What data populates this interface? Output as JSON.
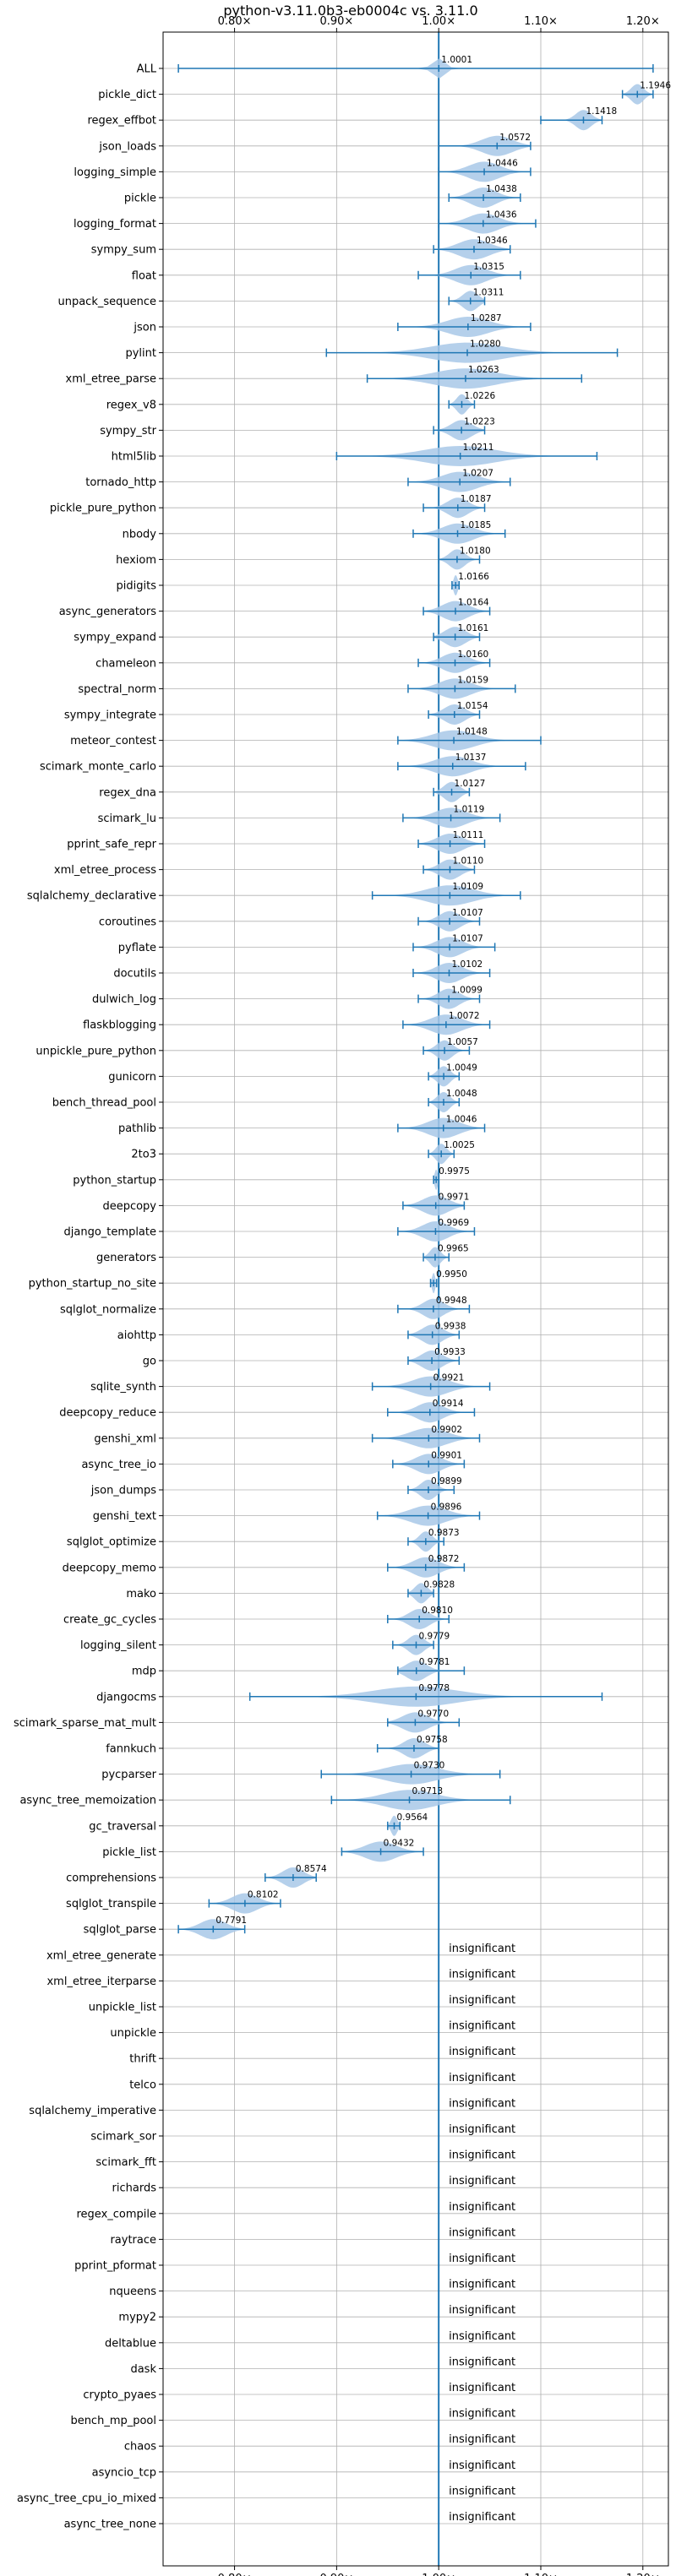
{
  "chart_data": {
    "type": "violin",
    "title": "python-v3.11.0b3-eb0004c vs. 3.11.0",
    "xlim": [
      0.73,
      1.225
    ],
    "x_ticks": [
      {
        "value": 0.8,
        "label": "0.80×"
      },
      {
        "value": 0.9,
        "label": "0.90×"
      },
      {
        "value": 1.0,
        "label": "1.00×"
      },
      {
        "value": 1.1,
        "label": "1.10×"
      },
      {
        "value": 1.2,
        "label": "1.20×"
      }
    ],
    "reference_x": 1.0,
    "grid": true,
    "colors": {
      "fill": "#a8c8e8",
      "line": "#1f77b4",
      "grid": "#b0b0b0"
    },
    "insignificant_label": "insignificant",
    "benchmarks": [
      {
        "name": "ALL",
        "value": 1.0001,
        "label": "1.0001",
        "lo": 0.745,
        "hi": 1.21,
        "spread": 0.012
      },
      {
        "name": "pickle_dict",
        "value": 1.1946,
        "label": "1.1946",
        "lo": 1.18,
        "hi": 1.21,
        "spread": 0.012
      },
      {
        "name": "regex_effbot",
        "value": 1.1418,
        "label": "1.1418",
        "lo": 1.1,
        "hi": 1.16,
        "spread": 0.015
      },
      {
        "name": "json_loads",
        "value": 1.0572,
        "label": "1.0572",
        "lo": 1.0,
        "hi": 1.09,
        "spread": 0.03
      },
      {
        "name": "logging_simple",
        "value": 1.0446,
        "label": "1.0446",
        "lo": 1.0,
        "hi": 1.09,
        "spread": 0.03
      },
      {
        "name": "pickle",
        "value": 1.0438,
        "label": "1.0438",
        "lo": 1.01,
        "hi": 1.08,
        "spread": 0.025
      },
      {
        "name": "logging_format",
        "value": 1.0436,
        "label": "1.0436",
        "lo": 1.0,
        "hi": 1.095,
        "spread": 0.03
      },
      {
        "name": "sympy_sum",
        "value": 1.0346,
        "label": "1.0346",
        "lo": 0.995,
        "hi": 1.07,
        "spread": 0.03
      },
      {
        "name": "float",
        "value": 1.0315,
        "label": "1.0315",
        "lo": 0.98,
        "hi": 1.08,
        "spread": 0.03
      },
      {
        "name": "unpack_sequence",
        "value": 1.0311,
        "label": "1.0311",
        "lo": 1.01,
        "hi": 1.045,
        "spread": 0.015
      },
      {
        "name": "json",
        "value": 1.0287,
        "label": "1.0287",
        "lo": 0.96,
        "hi": 1.09,
        "spread": 0.04
      },
      {
        "name": "pylint",
        "value": 1.028,
        "label": "1.0280",
        "lo": 0.89,
        "hi": 1.175,
        "spread": 0.07
      },
      {
        "name": "xml_etree_parse",
        "value": 1.0263,
        "label": "1.0263",
        "lo": 0.93,
        "hi": 1.14,
        "spread": 0.06
      },
      {
        "name": "regex_v8",
        "value": 1.0226,
        "label": "1.0226",
        "lo": 1.01,
        "hi": 1.035,
        "spread": 0.01
      },
      {
        "name": "sympy_str",
        "value": 1.0223,
        "label": "1.0223",
        "lo": 0.995,
        "hi": 1.045,
        "spread": 0.02
      },
      {
        "name": "html5lib",
        "value": 1.0211,
        "label": "1.0211",
        "lo": 0.9,
        "hi": 1.155,
        "spread": 0.07
      },
      {
        "name": "tornado_http",
        "value": 1.0207,
        "label": "1.0207",
        "lo": 0.97,
        "hi": 1.07,
        "spread": 0.035
      },
      {
        "name": "pickle_pure_python",
        "value": 1.0187,
        "label": "1.0187",
        "lo": 0.985,
        "hi": 1.045,
        "spread": 0.02
      },
      {
        "name": "nbody",
        "value": 1.0185,
        "label": "1.0185",
        "lo": 0.975,
        "hi": 1.065,
        "spread": 0.03
      },
      {
        "name": "hexiom",
        "value": 1.018,
        "label": "1.0180",
        "lo": 1.0,
        "hi": 1.04,
        "spread": 0.015
      },
      {
        "name": "pidigits",
        "value": 1.0166,
        "label": "1.0166",
        "lo": 1.013,
        "hi": 1.02,
        "spread": 0.004
      },
      {
        "name": "async_generators",
        "value": 1.0164,
        "label": "1.0164",
        "lo": 0.985,
        "hi": 1.05,
        "spread": 0.025
      },
      {
        "name": "sympy_expand",
        "value": 1.0161,
        "label": "1.0161",
        "lo": 0.995,
        "hi": 1.04,
        "spread": 0.02
      },
      {
        "name": "chameleon",
        "value": 1.016,
        "label": "1.0160",
        "lo": 0.98,
        "hi": 1.05,
        "spread": 0.025
      },
      {
        "name": "spectral_norm",
        "value": 1.0159,
        "label": "1.0159",
        "lo": 0.97,
        "hi": 1.075,
        "spread": 0.03
      },
      {
        "name": "sympy_integrate",
        "value": 1.0154,
        "label": "1.0154",
        "lo": 0.99,
        "hi": 1.04,
        "spread": 0.02
      },
      {
        "name": "meteor_contest",
        "value": 1.0148,
        "label": "1.0148",
        "lo": 0.96,
        "hi": 1.1,
        "spread": 0.04
      },
      {
        "name": "scimark_monte_carlo",
        "value": 1.0137,
        "label": "1.0137",
        "lo": 0.96,
        "hi": 1.085,
        "spread": 0.035
      },
      {
        "name": "regex_dna",
        "value": 1.0127,
        "label": "1.0127",
        "lo": 0.995,
        "hi": 1.03,
        "spread": 0.015
      },
      {
        "name": "scimark_lu",
        "value": 1.0119,
        "label": "1.0119",
        "lo": 0.965,
        "hi": 1.06,
        "spread": 0.03
      },
      {
        "name": "pprint_safe_repr",
        "value": 1.0111,
        "label": "1.0111",
        "lo": 0.98,
        "hi": 1.045,
        "spread": 0.025
      },
      {
        "name": "xml_etree_process",
        "value": 1.011,
        "label": "1.0110",
        "lo": 0.985,
        "hi": 1.035,
        "spread": 0.02
      },
      {
        "name": "sqlalchemy_declarative",
        "value": 1.0109,
        "label": "1.0109",
        "lo": 0.935,
        "hi": 1.08,
        "spread": 0.045
      },
      {
        "name": "coroutines",
        "value": 1.0107,
        "label": "1.0107",
        "lo": 0.98,
        "hi": 1.04,
        "spread": 0.02
      },
      {
        "name": "pyflate",
        "value": 1.0107,
        "label": "1.0107",
        "lo": 0.975,
        "hi": 1.055,
        "spread": 0.025
      },
      {
        "name": "docutils",
        "value": 1.0102,
        "label": "1.0102",
        "lo": 0.975,
        "hi": 1.05,
        "spread": 0.025
      },
      {
        "name": "dulwich_log",
        "value": 1.0099,
        "label": "1.0099",
        "lo": 0.98,
        "hi": 1.04,
        "spread": 0.02
      },
      {
        "name": "flaskblogging",
        "value": 1.0072,
        "label": "1.0072",
        "lo": 0.965,
        "hi": 1.05,
        "spread": 0.03
      },
      {
        "name": "unpickle_pure_python",
        "value": 1.0057,
        "label": "1.0057",
        "lo": 0.985,
        "hi": 1.03,
        "spread": 0.015
      },
      {
        "name": "gunicorn",
        "value": 1.0049,
        "label": "1.0049",
        "lo": 0.99,
        "hi": 1.02,
        "spread": 0.012
      },
      {
        "name": "bench_thread_pool",
        "value": 1.0048,
        "label": "1.0048",
        "lo": 0.99,
        "hi": 1.02,
        "spread": 0.012
      },
      {
        "name": "pathlib",
        "value": 1.0046,
        "label": "1.0046",
        "lo": 0.96,
        "hi": 1.045,
        "spread": 0.03
      },
      {
        "name": "2to3",
        "value": 1.0025,
        "label": "1.0025",
        "lo": 0.99,
        "hi": 1.015,
        "spread": 0.01
      },
      {
        "name": "python_startup",
        "value": 0.9975,
        "label": "0.9975",
        "lo": 0.995,
        "hi": 1.0,
        "spread": 0.003
      },
      {
        "name": "deepcopy",
        "value": 0.9971,
        "label": "0.9971",
        "lo": 0.965,
        "hi": 1.025,
        "spread": 0.025
      },
      {
        "name": "django_template",
        "value": 0.9969,
        "label": "0.9969",
        "lo": 0.96,
        "hi": 1.035,
        "spread": 0.025
      },
      {
        "name": "generators",
        "value": 0.9965,
        "label": "0.9965",
        "lo": 0.985,
        "hi": 1.01,
        "spread": 0.01
      },
      {
        "name": "python_startup_no_site",
        "value": 0.995,
        "label": "0.9950",
        "lo": 0.992,
        "hi": 0.998,
        "spread": 0.003
      },
      {
        "name": "sqlglot_normalize",
        "value": 0.9948,
        "label": "0.9948",
        "lo": 0.96,
        "hi": 1.03,
        "spread": 0.02
      },
      {
        "name": "aiohttp",
        "value": 0.9938,
        "label": "0.9938",
        "lo": 0.97,
        "hi": 1.02,
        "spread": 0.02
      },
      {
        "name": "go",
        "value": 0.9933,
        "label": "0.9933",
        "lo": 0.97,
        "hi": 1.02,
        "spread": 0.02
      },
      {
        "name": "sqlite_synth",
        "value": 0.9921,
        "label": "0.9921",
        "lo": 0.935,
        "hi": 1.05,
        "spread": 0.035
      },
      {
        "name": "deepcopy_reduce",
        "value": 0.9914,
        "label": "0.9914",
        "lo": 0.95,
        "hi": 1.035,
        "spread": 0.025
      },
      {
        "name": "genshi_xml",
        "value": 0.9902,
        "label": "0.9902",
        "lo": 0.935,
        "hi": 1.04,
        "spread": 0.035
      },
      {
        "name": "async_tree_io",
        "value": 0.9901,
        "label": "0.9901",
        "lo": 0.955,
        "hi": 1.025,
        "spread": 0.025
      },
      {
        "name": "json_dumps",
        "value": 0.9899,
        "label": "0.9899",
        "lo": 0.97,
        "hi": 1.015,
        "spread": 0.015
      },
      {
        "name": "genshi_text",
        "value": 0.9896,
        "label": "0.9896",
        "lo": 0.94,
        "hi": 1.04,
        "spread": 0.035
      },
      {
        "name": "sqlglot_optimize",
        "value": 0.9873,
        "label": "0.9873",
        "lo": 0.97,
        "hi": 1.005,
        "spread": 0.012
      },
      {
        "name": "deepcopy_memo",
        "value": 0.9872,
        "label": "0.9872",
        "lo": 0.95,
        "hi": 1.025,
        "spread": 0.025
      },
      {
        "name": "mako",
        "value": 0.9828,
        "label": "0.9828",
        "lo": 0.97,
        "hi": 0.995,
        "spread": 0.012
      },
      {
        "name": "create_gc_cycles",
        "value": 0.981,
        "label": "0.9810",
        "lo": 0.95,
        "hi": 1.01,
        "spread": 0.02
      },
      {
        "name": "logging_silent",
        "value": 0.9779,
        "label": "0.9779",
        "lo": 0.955,
        "hi": 0.995,
        "spread": 0.015
      },
      {
        "name": "mdp",
        "value": 0.9781,
        "label": "0.9781",
        "lo": 0.96,
        "hi": 1.025,
        "spread": 0.02
      },
      {
        "name": "djangocms",
        "value": 0.9778,
        "label": "0.9778",
        "lo": 0.815,
        "hi": 1.16,
        "spread": 0.08
      },
      {
        "name": "scimark_sparse_mat_mult",
        "value": 0.977,
        "label": "0.9770",
        "lo": 0.95,
        "hi": 1.02,
        "spread": 0.025
      },
      {
        "name": "fannkuch",
        "value": 0.9758,
        "label": "0.9758",
        "lo": 0.94,
        "hi": 1.0,
        "spread": 0.02
      },
      {
        "name": "pycparser",
        "value": 0.973,
        "label": "0.9730",
        "lo": 0.885,
        "hi": 1.06,
        "spread": 0.05
      },
      {
        "name": "async_tree_memoization",
        "value": 0.9713,
        "label": "0.9713",
        "lo": 0.895,
        "hi": 1.07,
        "spread": 0.05
      },
      {
        "name": "gc_traversal",
        "value": 0.9564,
        "label": "0.9564",
        "lo": 0.95,
        "hi": 0.962,
        "spread": 0.006
      },
      {
        "name": "pickle_list",
        "value": 0.9432,
        "label": "0.9432",
        "lo": 0.905,
        "hi": 0.985,
        "spread": 0.03
      },
      {
        "name": "comprehensions",
        "value": 0.8574,
        "label": "0.8574",
        "lo": 0.83,
        "hi": 0.88,
        "spread": 0.02
      },
      {
        "name": "sqlglot_transpile",
        "value": 0.8102,
        "label": "0.8102",
        "lo": 0.775,
        "hi": 0.845,
        "spread": 0.025
      },
      {
        "name": "sqlglot_parse",
        "value": 0.7791,
        "label": "0.7791",
        "lo": 0.745,
        "hi": 0.81,
        "spread": 0.025
      },
      {
        "name": "xml_etree_generate",
        "insignificant": true
      },
      {
        "name": "xml_etree_iterparse",
        "insignificant": true
      },
      {
        "name": "unpickle_list",
        "insignificant": true
      },
      {
        "name": "unpickle",
        "insignificant": true
      },
      {
        "name": "thrift",
        "insignificant": true
      },
      {
        "name": "telco",
        "insignificant": true
      },
      {
        "name": "sqlalchemy_imperative",
        "insignificant": true
      },
      {
        "name": "scimark_sor",
        "insignificant": true
      },
      {
        "name": "scimark_fft",
        "insignificant": true
      },
      {
        "name": "richards",
        "insignificant": true
      },
      {
        "name": "regex_compile",
        "insignificant": true
      },
      {
        "name": "raytrace",
        "insignificant": true
      },
      {
        "name": "pprint_pformat",
        "insignificant": true
      },
      {
        "name": "nqueens",
        "insignificant": true
      },
      {
        "name": "mypy2",
        "insignificant": true
      },
      {
        "name": "deltablue",
        "insignificant": true
      },
      {
        "name": "dask",
        "insignificant": true
      },
      {
        "name": "crypto_pyaes",
        "insignificant": true
      },
      {
        "name": "bench_mp_pool",
        "insignificant": true
      },
      {
        "name": "chaos",
        "insignificant": true
      },
      {
        "name": "asyncio_tcp",
        "insignificant": true
      },
      {
        "name": "async_tree_cpu_io_mixed",
        "insignificant": true
      },
      {
        "name": "async_tree_none",
        "insignificant": true
      }
    ]
  }
}
